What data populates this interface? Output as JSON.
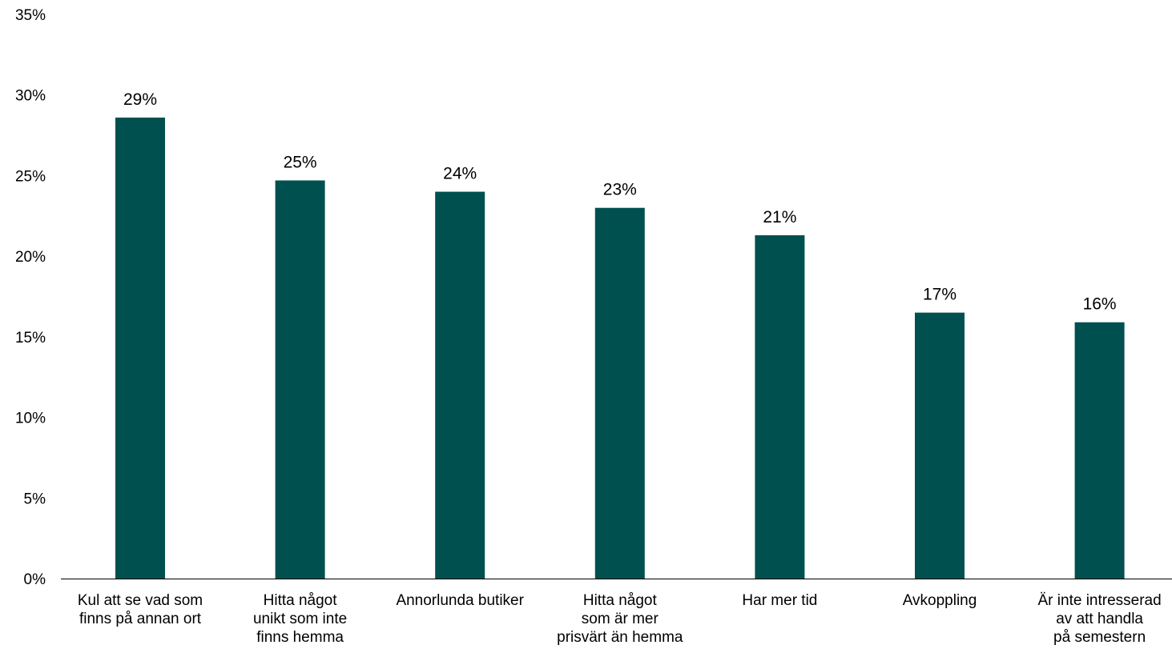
{
  "chart_data": {
    "type": "bar",
    "title": "",
    "xlabel": "",
    "ylabel": "",
    "ylim": [
      0,
      35
    ],
    "yticks": [
      0,
      5,
      10,
      15,
      20,
      25,
      30,
      35
    ],
    "ytick_labels": [
      "0%",
      "5%",
      "10%",
      "15%",
      "20%",
      "25%",
      "30%",
      "35%"
    ],
    "grid": false,
    "legend": "none",
    "bar_color": "#00504F",
    "categories": [
      [
        "Kul att se vad som",
        "finns på annan ort"
      ],
      [
        "Hitta något",
        "unikt som inte",
        "finns hemma"
      ],
      [
        "Annorlunda butiker"
      ],
      [
        "Hitta något",
        "som är mer",
        "prisvärt än hemma"
      ],
      [
        "Har mer tid"
      ],
      [
        "Avkoppling"
      ],
      [
        "Är inte intresserad",
        "av att handla",
        "på semestern"
      ]
    ],
    "values": [
      28.6,
      24.7,
      24.0,
      23.0,
      21.3,
      16.5,
      15.9
    ],
    "data_labels": [
      "29%",
      "25%",
      "24%",
      "23%",
      "21%",
      "17%",
      "16%"
    ]
  }
}
